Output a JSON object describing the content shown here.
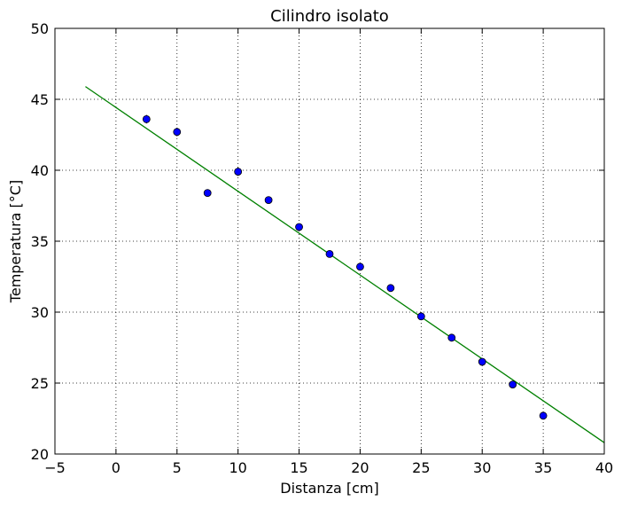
{
  "chart_data": {
    "type": "scatter",
    "title": "Cilindro isolato",
    "xlabel": "Distanza [cm]",
    "ylabel": "Temperatura [°C]",
    "xlim": [
      -5,
      40
    ],
    "ylim": [
      20,
      50
    ],
    "xticks": [
      -5,
      0,
      5,
      10,
      15,
      20,
      25,
      30,
      35,
      40
    ],
    "yticks": [
      20,
      25,
      30,
      35,
      40,
      45,
      50
    ],
    "xtick_labels": [
      "−5",
      "0",
      "5",
      "10",
      "15",
      "20",
      "25",
      "30",
      "35",
      "40"
    ],
    "ytick_labels": [
      "20",
      "25",
      "30",
      "35",
      "40",
      "45",
      "50"
    ],
    "grid": true,
    "series": [
      {
        "kind": "points",
        "color": "#0000ff",
        "x": [
          2.5,
          5,
          7.5,
          10,
          12.5,
          15,
          17.5,
          20,
          22.5,
          25,
          27.5,
          30,
          32.5,
          35
        ],
        "y": [
          43.6,
          42.7,
          38.4,
          39.9,
          37.9,
          36.0,
          34.1,
          33.2,
          31.7,
          29.7,
          28.2,
          26.5,
          24.9,
          22.7
        ],
        "yerr": [
          0.3,
          0.3,
          0.2,
          0.3,
          0.2,
          0.2,
          0.2,
          0.2,
          0.2,
          0.2,
          0.2,
          0.2,
          0.2,
          0.2
        ]
      },
      {
        "kind": "fit-line",
        "color": "#008000",
        "x": [
          -2.5,
          40
        ],
        "y": [
          45.9,
          20.8
        ]
      }
    ]
  }
}
